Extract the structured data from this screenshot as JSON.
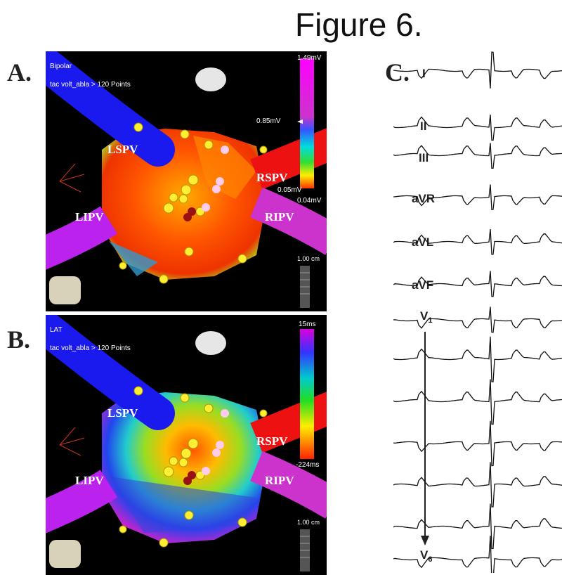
{
  "figure": {
    "title": "Figure 6."
  },
  "panels": [
    {
      "label": "A.",
      "map_type": "Bipolar",
      "map_info": "tac volt_abla > 120 Points",
      "scale_max": "1.49mV",
      "scale_mid": "0.85mV",
      "scale_low": "0.05mV",
      "scale_min": "0.04mV",
      "distance": "1.00 cm",
      "veins": [
        "LSPV",
        "RSPV",
        "LIPV",
        "RIPV"
      ]
    },
    {
      "label": "B.",
      "map_type": "LAT",
      "map_info": "tac volt_abla > 120 Points",
      "scale_max": "15ms",
      "scale_min": "-224ms",
      "distance": "1.00 cm",
      "veins": [
        "LSPV",
        "RSPV",
        "LIPV",
        "RIPV"
      ]
    }
  ],
  "ecg": {
    "label": "C.",
    "leads": [
      "I",
      "II",
      "III",
      "aVR",
      "aVL",
      "aVF",
      "V",
      "V"
    ],
    "lead_subscripts": [
      "1",
      "6"
    ]
  }
}
